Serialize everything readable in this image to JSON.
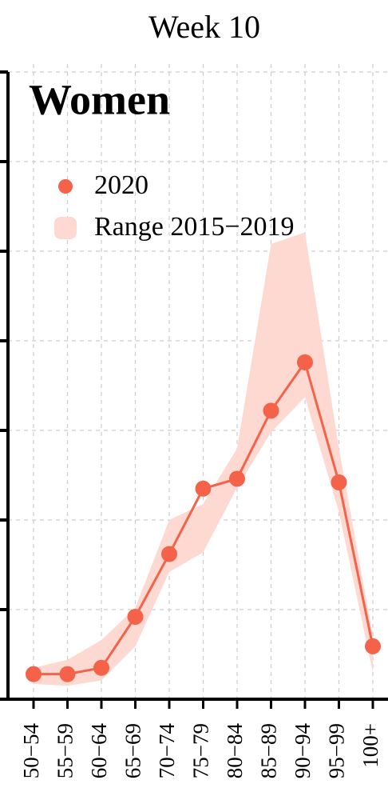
{
  "chart_data": {
    "type": "line",
    "title": "Week 10",
    "panel_label": "Women",
    "categories": [
      "50−54",
      "55−59",
      "60−64",
      "65−69",
      "70−74",
      "75−79",
      "80−84",
      "85−89",
      "90−94",
      "95−99",
      "100+"
    ],
    "series": [
      {
        "name": "2020",
        "color": "#f4624a",
        "values": [
          0.28,
          0.28,
          0.35,
          0.92,
          1.62,
          2.35,
          2.46,
          3.22,
          3.76,
          2.42,
          0.59
        ]
      }
    ],
    "band": {
      "name": "Range 2015−2019",
      "color": "#fdd9d1",
      "low": [
        0.17,
        0.15,
        0.21,
        0.59,
        1.42,
        1.64,
        2.36,
        2.98,
        3.37,
        2.09,
        0.3
      ],
      "high": [
        0.35,
        0.44,
        0.66,
        1.02,
        2.0,
        2.18,
        2.8,
        5.08,
        5.21,
        2.8,
        0.71
      ]
    },
    "ylim": [
      0,
      7
    ],
    "yticks": [
      0,
      1,
      2,
      3,
      4,
      5,
      6,
      7
    ],
    "grid": true,
    "legend": "top-left"
  }
}
